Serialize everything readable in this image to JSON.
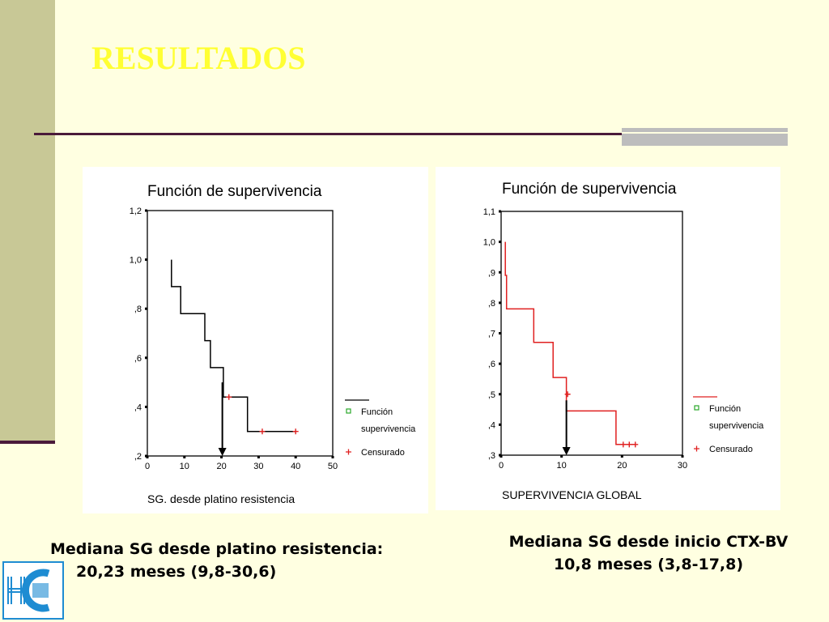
{
  "slide": {
    "title": "RESULTADOS"
  },
  "captions": {
    "left_line1": "Mediana SG desde platino resistencia:",
    "left_line2": "20,23 meses (9,8-30,6)",
    "right_line1": "Mediana SG desde inicio CTX-BV",
    "right_line2": "10,8 meses  (3,8-17,8)"
  },
  "logo": {
    "icon": "hospital-logo-icon",
    "color": "#1e8cd2"
  },
  "chart_data": [
    {
      "type": "line",
      "step": true,
      "title": "Función de supervivencia",
      "xlabel": "SG. desde platino resistencia",
      "ylabel": "",
      "xlim": [
        0,
        50
      ],
      "ylim": [
        0.2,
        1.2
      ],
      "x_ticks": [
        0,
        10,
        20,
        30,
        40,
        50
      ],
      "x_tick_labels": [
        "0",
        "10",
        "20",
        "30",
        "40",
        "50"
      ],
      "y_ticks": [
        0.2,
        0.4,
        0.6,
        0.8,
        1.0,
        1.2
      ],
      "y_tick_labels": [
        ",2",
        ",4",
        ",6",
        ",8",
        "1,0",
        "1,2"
      ],
      "line_color": "#000000",
      "survival_steps": [
        {
          "x": 6.5,
          "y": 1.0
        },
        {
          "x": 6.5,
          "y": 0.89
        },
        {
          "x": 9,
          "y": 0.89
        },
        {
          "x": 9,
          "y": 0.78
        },
        {
          "x": 15.5,
          "y": 0.78
        },
        {
          "x": 15.5,
          "y": 0.67
        },
        {
          "x": 17,
          "y": 0.67
        },
        {
          "x": 17,
          "y": 0.56
        },
        {
          "x": 20.5,
          "y": 0.56
        },
        {
          "x": 20.5,
          "y": 0.44
        },
        {
          "x": 27,
          "y": 0.44
        },
        {
          "x": 27,
          "y": 0.3
        },
        {
          "x": 40,
          "y": 0.3
        }
      ],
      "censored": [
        {
          "x": 22,
          "y": 0.44
        },
        {
          "x": 31,
          "y": 0.3
        },
        {
          "x": 40,
          "y": 0.3
        }
      ],
      "median_arrow": {
        "x": 20.23,
        "y_from": 0.5
      },
      "legend": {
        "position": "right",
        "entries": [
          {
            "label_line1": "Función",
            "label_line2": "supervivencia",
            "marker": "square"
          },
          {
            "label_line1": "Censurado",
            "label_line2": "",
            "marker": "plus"
          }
        ]
      }
    },
    {
      "type": "line",
      "step": true,
      "title": "Función de supervivencia",
      "xlabel": "SUPERVIVENCIA GLOBAL",
      "ylabel": "",
      "xlim": [
        0,
        30
      ],
      "ylim": [
        0.3,
        1.1
      ],
      "x_ticks": [
        0,
        10,
        20,
        30
      ],
      "x_tick_labels": [
        "0",
        "10",
        "20",
        "30"
      ],
      "y_ticks": [
        0.3,
        0.4,
        0.5,
        0.6,
        0.7,
        0.8,
        0.9,
        1.0,
        1.1
      ],
      "y_tick_labels": [
        ",3",
        ",4",
        ",5",
        ",6",
        ",7",
        ",8",
        ",9",
        "1,0",
        "1,1"
      ],
      "line_color": "#e02020",
      "survival_steps": [
        {
          "x": 0.7,
          "y": 1.0
        },
        {
          "x": 0.7,
          "y": 0.89
        },
        {
          "x": 0.9,
          "y": 0.89
        },
        {
          "x": 0.9,
          "y": 0.78
        },
        {
          "x": 5.4,
          "y": 0.78
        },
        {
          "x": 5.4,
          "y": 0.67
        },
        {
          "x": 8.6,
          "y": 0.67
        },
        {
          "x": 8.6,
          "y": 0.555
        },
        {
          "x": 10.8,
          "y": 0.555
        },
        {
          "x": 10.8,
          "y": 0.445
        },
        {
          "x": 19,
          "y": 0.445
        },
        {
          "x": 19,
          "y": 0.335
        },
        {
          "x": 22.2,
          "y": 0.335
        }
      ],
      "censored": [
        {
          "x": 11,
          "y": 0.5
        },
        {
          "x": 20.2,
          "y": 0.335
        },
        {
          "x": 21.2,
          "y": 0.335
        },
        {
          "x": 22.2,
          "y": 0.335
        }
      ],
      "median_arrow": {
        "x": 10.8,
        "y_from": 0.48
      },
      "legend": {
        "position": "right",
        "entries": [
          {
            "label_line1": "Función",
            "label_line2": "supervivencia",
            "marker": "square"
          },
          {
            "label_line1": "Censurado",
            "label_line2": "",
            "marker": "plus"
          }
        ]
      }
    }
  ]
}
